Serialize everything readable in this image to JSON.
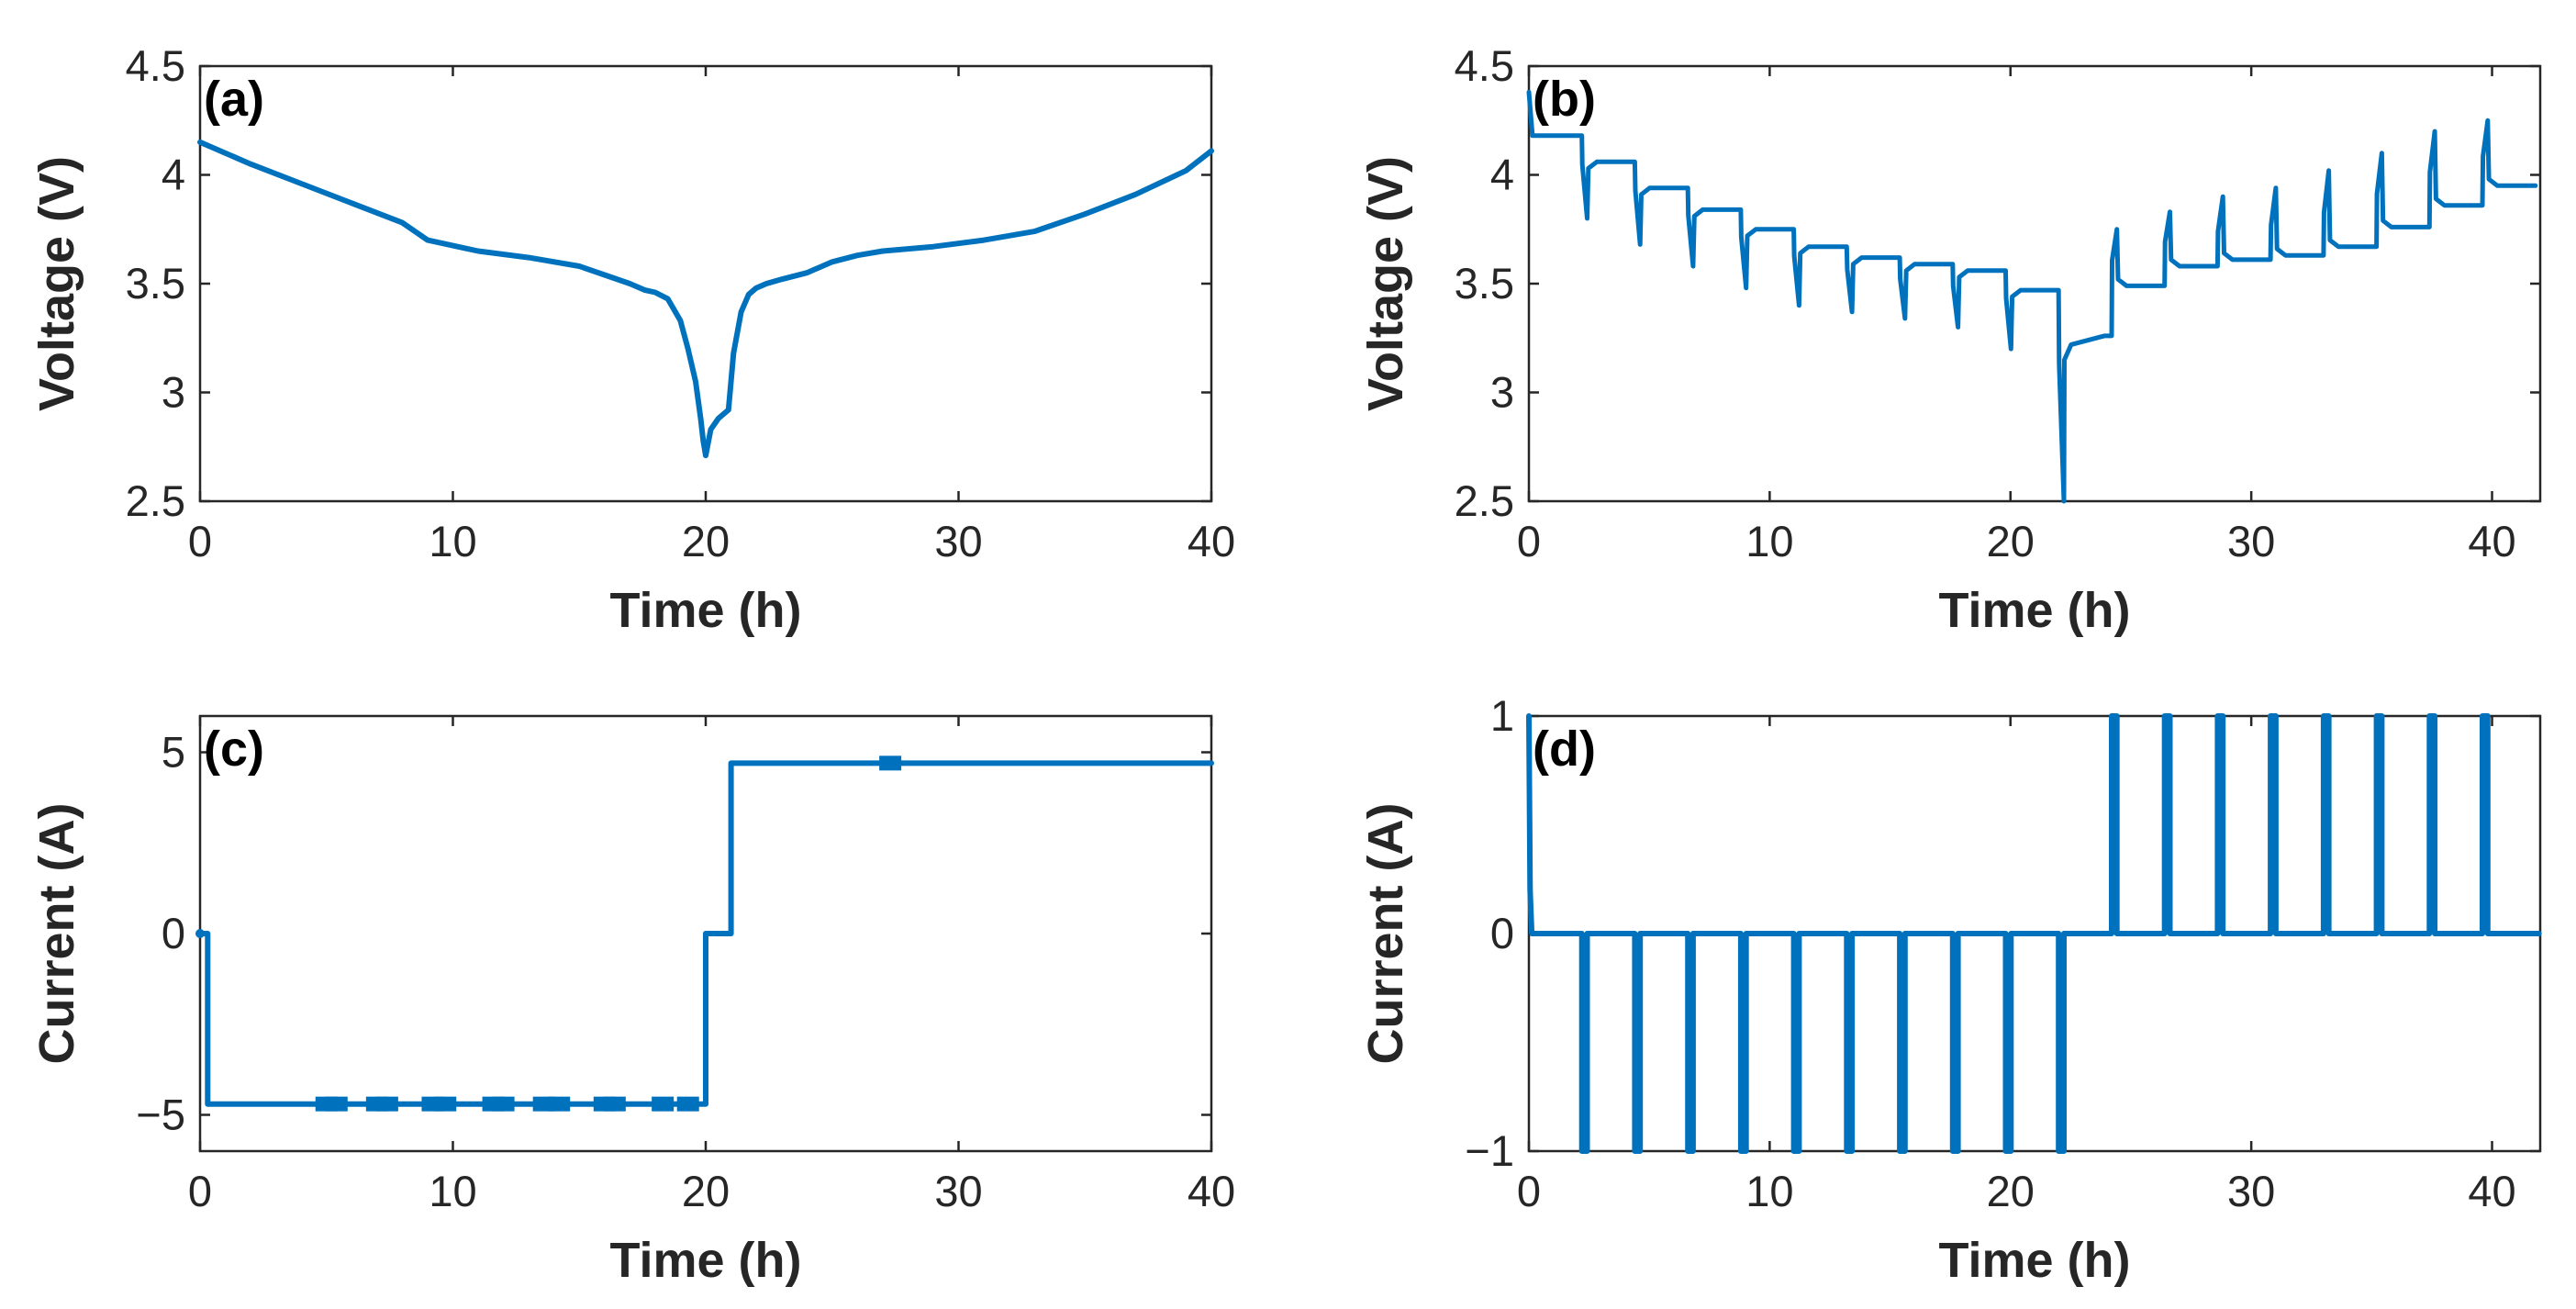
{
  "chart_data": [
    {
      "id": "a",
      "type": "line",
      "panel_label": "(a)",
      "xlabel": "Time (h)",
      "ylabel": "Voltage (V)",
      "xlim": [
        0,
        40
      ],
      "ylim": [
        2.5,
        4.5
      ],
      "xticks": [
        0,
        10,
        20,
        30,
        40
      ],
      "yticks": [
        2.5,
        3,
        3.5,
        4,
        4.5
      ],
      "xtick_labels": [
        "0",
        "10",
        "20",
        "30",
        "40"
      ],
      "ytick_labels": [
        "2.5",
        "3",
        "3.5",
        "4",
        "4.5"
      ],
      "color": "#0072BD",
      "series": [
        {
          "name": "voltage",
          "x": [
            0,
            2,
            4,
            6,
            8,
            9,
            11,
            13,
            15,
            16,
            17,
            17.6,
            18,
            18.5,
            19,
            19.3,
            19.6,
            19.8,
            19.9,
            20,
            20.2,
            20.5,
            20.9,
            21.1,
            21.4,
            21.7,
            22,
            22.4,
            23,
            24,
            25,
            26,
            27,
            29,
            31,
            33,
            35,
            37,
            39,
            40
          ],
          "y": [
            4.15,
            4.05,
            3.96,
            3.87,
            3.78,
            3.7,
            3.65,
            3.62,
            3.58,
            3.54,
            3.5,
            3.47,
            3.46,
            3.43,
            3.33,
            3.2,
            3.05,
            2.88,
            2.78,
            2.71,
            2.83,
            2.88,
            2.92,
            3.18,
            3.37,
            3.45,
            3.48,
            3.5,
            3.52,
            3.55,
            3.6,
            3.63,
            3.65,
            3.67,
            3.7,
            3.74,
            3.82,
            3.91,
            4.02,
            4.11
          ]
        }
      ]
    },
    {
      "id": "b",
      "type": "line",
      "panel_label": "(b)",
      "xlabel": "Time (h)",
      "ylabel": "Voltage (V)",
      "xlim": [
        0,
        42
      ],
      "ylim": [
        2.5,
        4.5
      ],
      "xticks": [
        0,
        10,
        20,
        30,
        40
      ],
      "yticks": [
        2.5,
        3,
        3.5,
        4,
        4.5
      ],
      "xtick_labels": [
        "0",
        "10",
        "20",
        "30",
        "40"
      ],
      "ytick_labels": [
        "2.5",
        "3",
        "3.5",
        "4",
        "4.5"
      ],
      "color": "#0072BD",
      "pulse_period": 2.2,
      "pulse_duration": 0.22,
      "discharge": {
        "count": 10,
        "rest_levels": [
          4.18,
          4.06,
          3.94,
          3.84,
          3.75,
          3.67,
          3.62,
          3.59,
          3.56,
          3.47
        ],
        "pulse_min": [
          3.8,
          3.68,
          3.58,
          3.48,
          3.4,
          3.37,
          3.34,
          3.3,
          3.2,
          2.5
        ],
        "initial_spike": 4.38
      },
      "transition": {
        "end_level": 3.26
      },
      "charge": {
        "start": 24.2,
        "count": 8,
        "rest_levels": [
          3.49,
          3.58,
          3.61,
          3.63,
          3.67,
          3.76,
          3.86,
          3.95
        ],
        "pulse_max": [
          3.75,
          3.83,
          3.9,
          3.94,
          4.02,
          4.1,
          4.2,
          4.25
        ]
      }
    },
    {
      "id": "c",
      "type": "line",
      "panel_label": "(c)",
      "xlabel": "Time (h)",
      "ylabel": "Current (A)",
      "xlim": [
        0,
        40
      ],
      "ylim": [
        -6,
        6
      ],
      "xticks": [
        0,
        10,
        20,
        30,
        40
      ],
      "yticks": [
        -5,
        0,
        5
      ],
      "xtick_labels": [
        "0",
        "10",
        "20",
        "30",
        "40"
      ],
      "ytick_labels": [
        "−5",
        "0",
        "5"
      ],
      "color": "#0072BD",
      "series": [
        {
          "name": "current",
          "x": [
            0,
            0.3,
            0.3,
            20,
            20,
            21,
            21,
            40
          ],
          "y": [
            0,
            0,
            -4.7,
            -4.7,
            0,
            0,
            4.7,
            4.7
          ]
        }
      ],
      "markers": [
        {
          "x": 5.0,
          "y": -4.7
        },
        {
          "x": 5.4,
          "y": -4.7
        },
        {
          "x": 7.0,
          "y": -4.7
        },
        {
          "x": 7.4,
          "y": -4.7
        },
        {
          "x": 9.2,
          "y": -4.7
        },
        {
          "x": 9.7,
          "y": -4.7
        },
        {
          "x": 11.6,
          "y": -4.7
        },
        {
          "x": 12.0,
          "y": -4.7
        },
        {
          "x": 13.6,
          "y": -4.7
        },
        {
          "x": 14.2,
          "y": -4.7
        },
        {
          "x": 16.0,
          "y": -4.7
        },
        {
          "x": 16.4,
          "y": -4.7
        },
        {
          "x": 18.3,
          "y": -4.7
        },
        {
          "x": 19.3,
          "y": -4.7
        },
        {
          "x": 27.3,
          "y": 4.7
        }
      ]
    },
    {
      "id": "d",
      "type": "line",
      "panel_label": "(d)",
      "xlabel": "Time (h)",
      "ylabel": "Current (A)",
      "xlim": [
        0,
        42
      ],
      "ylim": [
        -1,
        1
      ],
      "xticks": [
        0,
        10,
        20,
        30,
        40
      ],
      "yticks": [
        -1,
        0,
        1
      ],
      "xtick_labels": [
        "0",
        "10",
        "20",
        "30",
        "40"
      ],
      "ytick_labels": [
        "−1",
        "0",
        "1"
      ],
      "color": "#0072BD",
      "initial_spike": 1,
      "pulse_period": 2.2,
      "pulse_duration": 0.22,
      "discharge_pulses": {
        "start": 2.2,
        "count": 10,
        "value": -1
      },
      "charge_pulses": {
        "start": 24.2,
        "count": 8,
        "value": 1
      }
    }
  ]
}
